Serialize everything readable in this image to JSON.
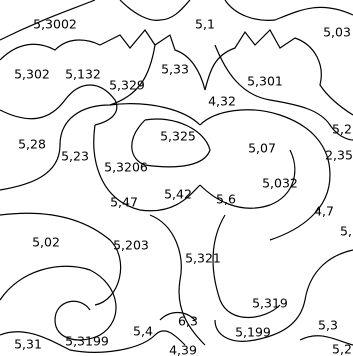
{
  "labels": [
    "5,3002",
    "5,1",
    "5,03",
    "5,302",
    "5,132",
    "5,329",
    "5,33",
    "5,301",
    "4,32",
    "5,2",
    "5,28",
    "5,23",
    "5,325",
    "5,07",
    "2,35",
    "5,3206",
    "5,032",
    "5,47",
    "5,42",
    "5,6",
    "4,7",
    "5,",
    "5,02",
    "5,203",
    "5,321",
    "5,319",
    "6,3",
    "5,3",
    "5,4",
    "5,199",
    "5,31",
    "5,3199",
    "4,39",
    "5,2"
  ]
}
